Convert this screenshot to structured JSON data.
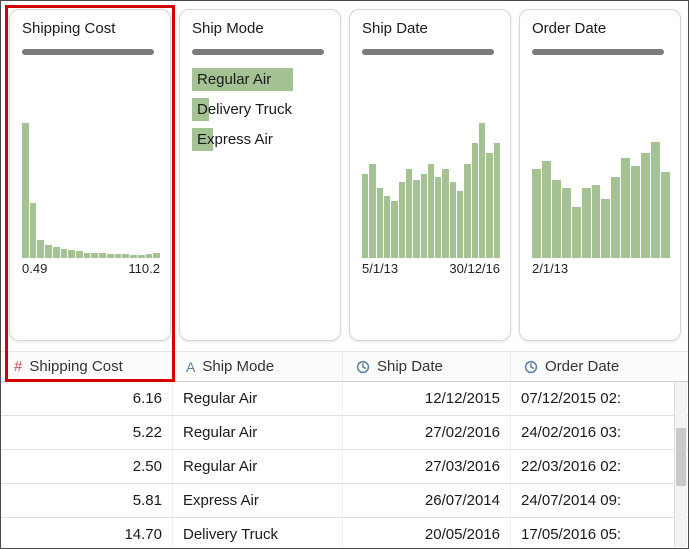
{
  "cards": [
    {
      "title": "Shipping Cost",
      "type": "histogram",
      "axis_min": "0.49",
      "axis_max": "110.2",
      "values": [
        100,
        41,
        13,
        10,
        8,
        7,
        6,
        5,
        4,
        4,
        4,
        3,
        3,
        3,
        2,
        2,
        3,
        4
      ]
    },
    {
      "title": "Ship Mode",
      "type": "category-list",
      "items": [
        {
          "label": "Regular Air",
          "bar_pct": 73
        },
        {
          "label": "Delivery Truck",
          "bar_pct": 12
        },
        {
          "label": "Express Air",
          "bar_pct": 15
        }
      ]
    },
    {
      "title": "Ship Date",
      "type": "histogram",
      "axis_min": "5/1/13",
      "axis_max": "30/12/16",
      "values": [
        62,
        70,
        52,
        46,
        42,
        56,
        66,
        58,
        62,
        70,
        60,
        66,
        56,
        50,
        70,
        85,
        100,
        78,
        85
      ]
    },
    {
      "title": "Order Date",
      "type": "histogram",
      "axis_min": "2/1/13",
      "axis_max": "",
      "values": [
        66,
        72,
        58,
        52,
        38,
        52,
        54,
        44,
        60,
        74,
        68,
        78,
        86,
        64
      ]
    }
  ],
  "table": {
    "columns": [
      {
        "label": "Shipping Cost",
        "icon": "number-type-icon",
        "glyph": "#",
        "align": "right"
      },
      {
        "label": "Ship Mode",
        "icon": "text-type-icon",
        "glyph": "A",
        "align": "left"
      },
      {
        "label": "Ship Date",
        "icon": "clock-icon",
        "glyph": "clock",
        "align": "right"
      },
      {
        "label": "Order Date",
        "icon": "clock-icon",
        "glyph": "clock",
        "align": "left"
      }
    ],
    "rows": [
      [
        "6.16",
        "Regular Air",
        "12/12/2015",
        "07/12/2015 02:"
      ],
      [
        "5.22",
        "Regular Air",
        "27/02/2016",
        "24/02/2016 03:"
      ],
      [
        "2.50",
        "Regular Air",
        "27/03/2016",
        "22/03/2016 02:"
      ],
      [
        "5.81",
        "Express Air",
        "26/07/2014",
        "24/07/2014 09:"
      ],
      [
        "14.70",
        "Delivery Truck",
        "20/05/2016",
        "17/05/2016 05:"
      ]
    ]
  },
  "colors": {
    "bar_green": "#a5c295",
    "slider_gray": "#7b7b7b",
    "highlight_red": "#d40000",
    "number_icon": "#c0504d",
    "string_icon": "#5b7fa6",
    "date_icon": "#5b7fa6"
  }
}
